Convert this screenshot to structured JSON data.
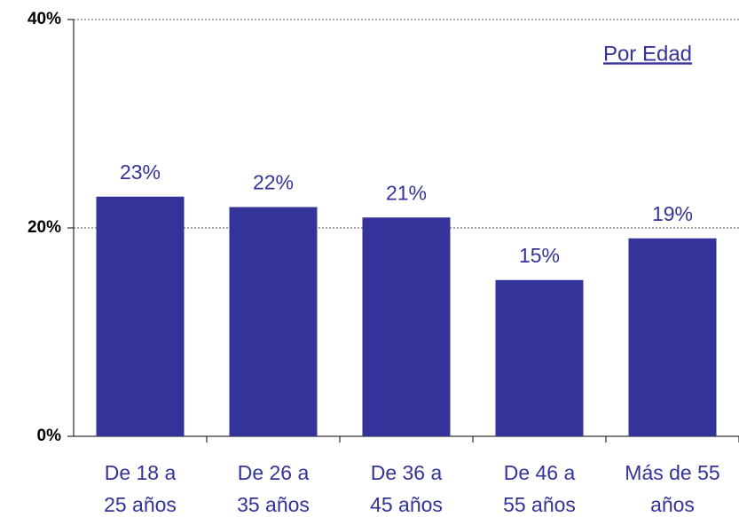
{
  "chart_data": {
    "type": "bar",
    "annotation": "Por Edad",
    "categories": [
      [
        "De 18 a",
        "25 años"
      ],
      [
        "De 26 a",
        "35 años"
      ],
      [
        "De 36 a",
        "45 años"
      ],
      [
        "De 46 a",
        "55 años"
      ],
      [
        "Más de 55",
        "años"
      ]
    ],
    "values": [
      23,
      22,
      21,
      15,
      19
    ],
    "value_labels": [
      "23%",
      "22%",
      "21%",
      "15%",
      "19%"
    ],
    "color": "#333399",
    "ylim": [
      0,
      40
    ],
    "yticks": [
      {
        "value": 0,
        "label": "0%"
      },
      {
        "value": 20,
        "label": "20%"
      },
      {
        "value": 40,
        "label": "40%"
      }
    ],
    "grid": true
  }
}
